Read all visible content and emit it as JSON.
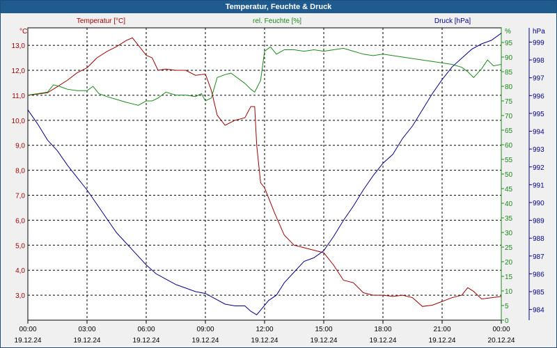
{
  "window": {
    "title": "Temperatur, Feuchte & Druck"
  },
  "colors": {
    "temp": "#a00000",
    "hum": "#1a8a1a",
    "press": "#00008b",
    "grid": "#000000"
  },
  "chart_data": {
    "type": "line",
    "title": "Temperatur, Feuchte & Druck",
    "x_ticks": [
      {
        "time": "00:00",
        "date": "19.12.24"
      },
      {
        "time": "03:00",
        "date": "19.12.24"
      },
      {
        "time": "06:00",
        "date": "19.12.24"
      },
      {
        "time": "09:00",
        "date": "19.12.24"
      },
      {
        "time": "12:00",
        "date": "19.12.24"
      },
      {
        "time": "15:00",
        "date": "19.12.24"
      },
      {
        "time": "18:00",
        "date": "19.12.24"
      },
      {
        "time": "21:00",
        "date": "19.12.24"
      },
      {
        "time": "00:00",
        "date": "20.12.24"
      }
    ],
    "x_range_hours": [
      0,
      24
    ],
    "grid": true,
    "axes": {
      "temp": {
        "unit": "°C",
        "ticks": [
          "3,0",
          "4,0",
          "5,0",
          "6,0",
          "7,0",
          "8,0",
          "9,0",
          "10,0",
          "11,0",
          "12,0",
          "13,0"
        ],
        "range": [
          2.0,
          13.7
        ]
      },
      "hum": {
        "unit": "%",
        "ticks": [
          "0",
          "5",
          "10",
          "15",
          "20",
          "25",
          "30",
          "35",
          "40",
          "45",
          "50",
          "55",
          "60",
          "65",
          "70",
          "75",
          "80",
          "85",
          "90",
          "95"
        ],
        "range": [
          0,
          100
        ]
      },
      "press": {
        "unit": "hPa",
        "ticks": [
          "984",
          "985",
          "986",
          "987",
          "988",
          "989",
          "990",
          "991",
          "992",
          "993",
          "994",
          "995",
          "996",
          "997",
          "998",
          "999"
        ],
        "range": [
          983.4,
          999.8
        ]
      }
    },
    "series": [
      {
        "name": "Temperatur [°C]",
        "axis": "temp",
        "x": [
          0,
          0.5,
          1,
          1.5,
          2,
          2.5,
          3,
          3.5,
          4,
          4.5,
          5,
          5.3,
          5.6,
          6,
          6.3,
          6.6,
          7,
          7.5,
          8,
          8.5,
          9,
          9.3,
          9.6,
          10,
          10.5,
          11,
          11.3,
          11.5,
          11.6,
          11.8,
          12,
          12.5,
          13,
          13.5,
          14,
          14.5,
          15,
          15.5,
          16,
          16.5,
          17,
          17.5,
          18,
          18.5,
          19,
          19.5,
          20,
          20.5,
          21,
          21.5,
          22,
          22.3,
          22.6,
          23,
          23.5,
          24
        ],
        "values": [
          11.0,
          11.05,
          11.1,
          11.35,
          11.6,
          11.9,
          12.1,
          12.5,
          12.75,
          12.95,
          13.2,
          13.3,
          13.0,
          12.6,
          12.5,
          12.0,
          12.05,
          12.0,
          12.0,
          11.8,
          11.85,
          11.2,
          10.2,
          9.8,
          10.0,
          10.1,
          10.55,
          10.55,
          9.0,
          7.5,
          7.3,
          6.3,
          5.4,
          5.0,
          4.9,
          4.8,
          4.7,
          4.2,
          3.6,
          3.5,
          3.1,
          3.0,
          3.0,
          2.95,
          3.0,
          2.9,
          2.55,
          2.6,
          2.75,
          2.9,
          3.0,
          3.3,
          3.15,
          2.85,
          2.9,
          2.95
        ]
      },
      {
        "name": "rel. Feuchte [%]",
        "axis": "hum",
        "x": [
          0,
          0.5,
          1,
          1.3,
          1.6,
          2,
          2.5,
          3,
          3.3,
          3.6,
          4,
          4.5,
          5,
          5.3,
          5.6,
          6,
          6.3,
          6.6,
          7,
          7.5,
          8,
          8.5,
          8.8,
          9,
          9.3,
          9.6,
          10,
          10.3,
          10.6,
          11,
          11.3,
          11.5,
          11.8,
          12,
          12.3,
          12.6,
          13,
          13.5,
          14,
          14.5,
          15,
          15.5,
          16,
          16.5,
          17,
          17.5,
          18,
          18.5,
          19,
          19.5,
          20,
          20.5,
          21,
          21.5,
          22,
          22.3,
          22.6,
          23,
          23.3,
          23.6,
          24
        ],
        "values": [
          77,
          77.5,
          78,
          80.5,
          80,
          79,
          78.5,
          78.5,
          80,
          77.5,
          76.5,
          75.5,
          74.5,
          74,
          73.5,
          75,
          75,
          76,
          78,
          77,
          77,
          76.5,
          77.5,
          75,
          76,
          83,
          84,
          84.5,
          83,
          81,
          79,
          78,
          82,
          92,
          93.5,
          91,
          92.5,
          92.5,
          92,
          92.5,
          92,
          92.5,
          93,
          92,
          91,
          90.5,
          91,
          90.5,
          90,
          89.5,
          89,
          88.5,
          88,
          87.5,
          86.5,
          85,
          83,
          86,
          89,
          87,
          87.5
        ]
      },
      {
        "name": "Druck [hPa]",
        "axis": "press",
        "x": [
          0,
          0.5,
          1,
          1.5,
          2,
          2.5,
          3,
          3.5,
          4,
          4.5,
          5,
          5.5,
          6,
          6.5,
          7,
          7.5,
          8,
          8.5,
          9,
          9.5,
          10,
          10.5,
          11,
          11.3,
          11.6,
          11.9,
          12.2,
          12.6,
          13,
          13.5,
          14,
          14.5,
          15,
          15.5,
          16,
          16.5,
          17,
          17.5,
          18,
          18.5,
          19,
          19.5,
          20,
          20.5,
          21,
          21.5,
          22,
          22.5,
          23,
          23.5,
          24
        ],
        "values": [
          995.2,
          994.4,
          993.5,
          992.9,
          992.1,
          991.4,
          990.7,
          989.9,
          989.1,
          988.3,
          987.7,
          987.1,
          986.5,
          986.0,
          985.7,
          985.4,
          985.2,
          985.0,
          984.9,
          984.6,
          984.3,
          984.2,
          984.2,
          983.9,
          983.7,
          984.1,
          984.5,
          984.8,
          985.5,
          986.1,
          986.7,
          986.9,
          987.3,
          988.1,
          989.0,
          989.8,
          990.7,
          991.5,
          992.2,
          992.7,
          993.6,
          994.3,
          995.2,
          996.1,
          996.9,
          997.6,
          998.1,
          998.6,
          998.9,
          999.1,
          999.5
        ]
      }
    ]
  }
}
